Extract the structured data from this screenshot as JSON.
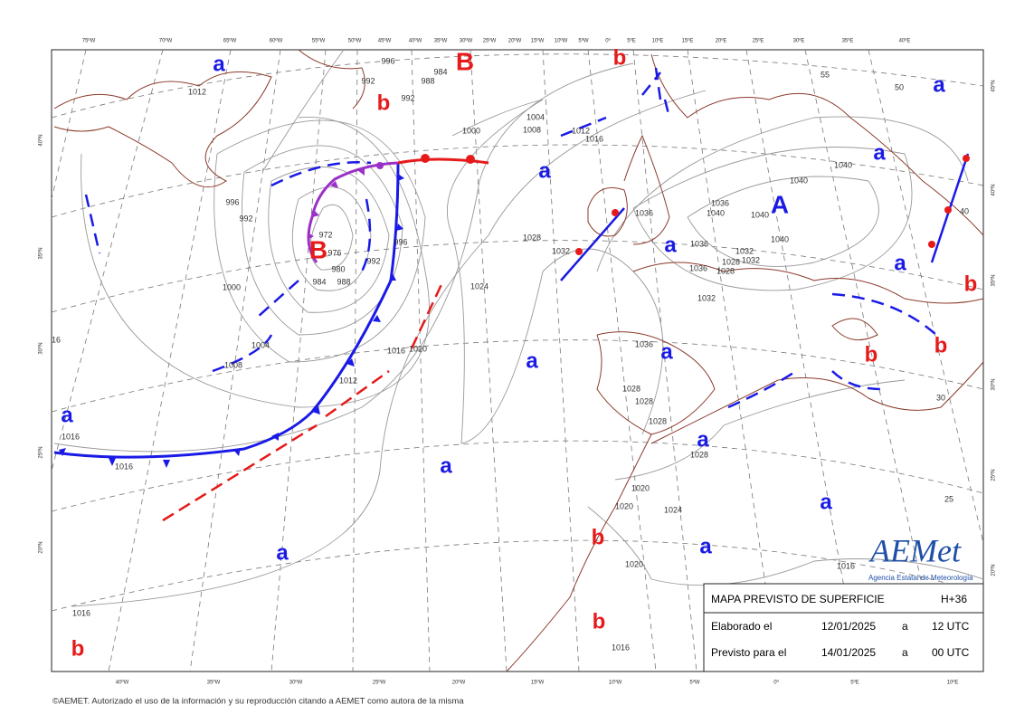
{
  "legend": {
    "title": "MAPA PREVISTO DE SUPERFICIE",
    "step": "H+36",
    "rows": [
      [
        "Elaborado el",
        "12/01/2025",
        "a",
        "12 UTC"
      ],
      [
        "Previsto para el",
        "14/01/2025",
        "a",
        "00 UTC"
      ]
    ]
  },
  "logo": {
    "name": "AEMet",
    "subtitle": "Agencia Estatal de Meteorología"
  },
  "copyright": "©AEMET. Autorizado el uso de la información y su reproducción citando a AEMET como autora de la misma",
  "top_longitudes": [
    "75ºW",
    "70ºW",
    "65ºW",
    "60ºW",
    "55ºW",
    "50ºW",
    "45ºW",
    "40ºW",
    "35ºW",
    "30ºW",
    "25ºW",
    "20ºW",
    "15ºW",
    "10ºW",
    "5ºW",
    "0º",
    "5ºE",
    "10ºE",
    "15ºE",
    "20ºE",
    "25ºE",
    "30ºE",
    "35ºE",
    "40ºE"
  ],
  "bottom_longitudes": [
    "40ºW",
    "35ºW",
    "30ºW",
    "25ºW",
    "20ºW",
    "15ºW",
    "10ºW",
    "5ºW",
    "0º",
    "5ºE",
    "10ºE"
  ],
  "left_latitudes": [
    "40ºN",
    "35ºN",
    "30ºN",
    "25ºN",
    "20ºN"
  ],
  "right_latitudes": [
    "45ºN",
    "40ºN",
    "35ºN",
    "30ºN",
    "25ºN",
    "20ºN"
  ],
  "centers": [
    {
      "label": "a",
      "color": "#1a1ae6"
    },
    {
      "label": "B",
      "color": "#e61a1a"
    },
    {
      "label": "b",
      "color": "#e61a1a"
    },
    {
      "label": "b",
      "color": "#e61a1a"
    },
    {
      "label": "a",
      "color": "#1a1ae6"
    },
    {
      "label": "a",
      "color": "#1a1ae6"
    },
    {
      "label": "a",
      "color": "#1a1ae6"
    },
    {
      "label": "A",
      "color": "#1a1ae6"
    },
    {
      "label": "B",
      "color": "#e61a1a"
    },
    {
      "label": "a",
      "color": "#1a1ae6"
    },
    {
      "label": "a",
      "color": "#1a1ae6"
    },
    {
      "label": "b",
      "color": "#e61a1a"
    },
    {
      "label": "a",
      "color": "#1a1ae6"
    },
    {
      "label": "a",
      "color": "#1a1ae6"
    },
    {
      "label": "b",
      "color": "#e61a1a"
    },
    {
      "label": "b",
      "color": "#e61a1a"
    },
    {
      "label": "a",
      "color": "#1a1ae6"
    },
    {
      "label": "a",
      "color": "#1a1ae6"
    },
    {
      "label": "a",
      "color": "#1a1ae6"
    },
    {
      "label": "a",
      "color": "#1a1ae6"
    },
    {
      "label": "b",
      "color": "#e61a1a"
    },
    {
      "label": "a",
      "color": "#1a1ae6"
    },
    {
      "label": "a",
      "color": "#1a1ae6"
    },
    {
      "label": "b",
      "color": "#e61a1a"
    },
    {
      "label": "b",
      "color": "#e61a1a"
    }
  ],
  "isobar_labels": [
    "1012",
    "996",
    "984",
    "992",
    "992",
    "988",
    "1000",
    "1004",
    "1008",
    "1012",
    "1016",
    "996",
    "992",
    "972",
    "976",
    "980",
    "984",
    "988",
    "992",
    "996",
    "1000",
    "1004",
    "1008",
    "1012",
    "1016",
    "1020",
    "1024",
    "1028",
    "1032",
    "1036",
    "1040",
    "1040",
    "1036",
    "1040",
    "1040",
    "1040",
    "1036",
    "1032",
    "1028",
    "1028",
    "1032",
    "1036",
    "1032",
    "1036",
    "1028",
    "1028",
    "1028",
    "1028",
    "1020",
    "1024",
    "1020",
    "1020",
    "1016",
    "1016",
    "1016",
    "1016",
    "1016",
    "16",
    "55",
    "50",
    "40",
    "30",
    "25"
  ]
}
